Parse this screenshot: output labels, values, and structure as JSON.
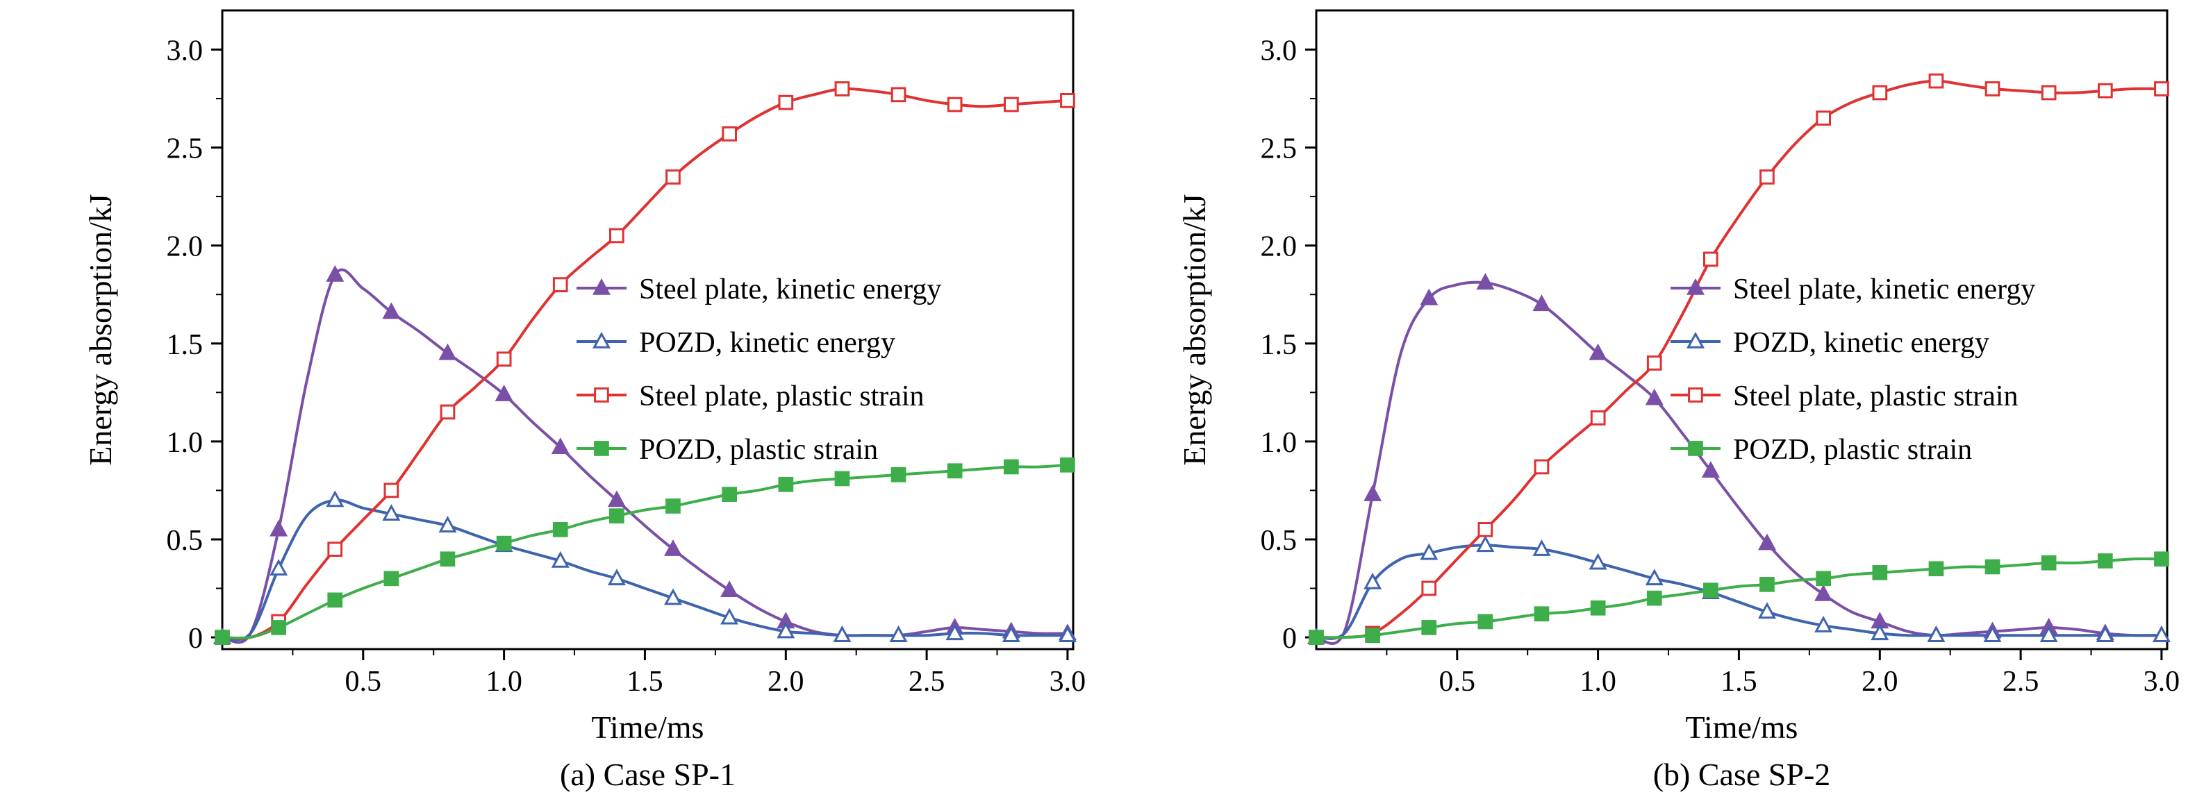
{
  "figure": {
    "background": "#ffffff"
  },
  "chart_data": [
    {
      "type": "line",
      "caption": "(a) Case SP-1",
      "xlabel": "Time/ms",
      "ylabel": "Energy absorption/kJ",
      "xlim": [
        0,
        3.02
      ],
      "ylim": [
        -0.06,
        3.2
      ],
      "grid": false,
      "legend_position": "inside-center-right",
      "xticks": {
        "values": [
          0.5,
          1.0,
          1.5,
          2.0,
          2.5,
          3.0
        ],
        "labels": [
          "0.5",
          "1.0",
          "1.5",
          "2.0",
          "2.5",
          "3.0"
        ]
      },
      "yticks": {
        "values": [
          0,
          0.5,
          1.0,
          1.5,
          2.0,
          2.5,
          3.0
        ],
        "labels": [
          "0",
          "0.5",
          "1.0",
          "1.5",
          "2.0",
          "2.5",
          "3.0"
        ]
      },
      "x": [
        0,
        0.1,
        0.2,
        0.3,
        0.4,
        0.5,
        0.6,
        0.7,
        0.8,
        0.9,
        1.0,
        1.1,
        1.2,
        1.3,
        1.4,
        1.5,
        1.6,
        1.7,
        1.8,
        1.9,
        2.0,
        2.1,
        2.2,
        2.3,
        2.4,
        2.5,
        2.6,
        2.7,
        2.8,
        2.9,
        3.0
      ],
      "series": [
        {
          "name": "Steel plate, kinetic energy",
          "color": "#7a4fa8",
          "marker": "triangle",
          "fill": "filled",
          "values": [
            0,
            0.02,
            0.55,
            1.31,
            1.85,
            1.78,
            1.66,
            1.56,
            1.45,
            1.35,
            1.24,
            1.1,
            0.97,
            0.83,
            0.7,
            0.57,
            0.45,
            0.34,
            0.24,
            0.15,
            0.08,
            0.03,
            0.01,
            0.01,
            0.01,
            0.03,
            0.05,
            0.04,
            0.03,
            0.02,
            0.02
          ]
        },
        {
          "name": "POZD, kinetic energy",
          "color": "#3e64ae",
          "marker": "triangle",
          "fill": "open",
          "values": [
            0,
            0.02,
            0.35,
            0.62,
            0.7,
            0.66,
            0.63,
            0.6,
            0.57,
            0.52,
            0.47,
            0.43,
            0.39,
            0.34,
            0.3,
            0.25,
            0.2,
            0.15,
            0.1,
            0.06,
            0.03,
            0.02,
            0.01,
            0.01,
            0.01,
            0.01,
            0.02,
            0.02,
            0.01,
            0.01,
            0.01
          ]
        },
        {
          "name": "Steel plate, plastic strain",
          "color": "#e03232",
          "marker": "square",
          "fill": "open",
          "values": [
            0,
            0,
            0.08,
            0.27,
            0.45,
            0.6,
            0.75,
            0.95,
            1.15,
            1.28,
            1.42,
            1.62,
            1.8,
            1.93,
            2.05,
            2.2,
            2.35,
            2.47,
            2.57,
            2.66,
            2.73,
            2.77,
            2.8,
            2.79,
            2.77,
            2.74,
            2.72,
            2.71,
            2.72,
            2.73,
            2.74
          ]
        },
        {
          "name": "POZD, plastic strain",
          "color": "#3dae49",
          "marker": "square",
          "fill": "filled",
          "values": [
            0,
            0,
            0.05,
            0.12,
            0.19,
            0.25,
            0.3,
            0.35,
            0.4,
            0.44,
            0.48,
            0.52,
            0.55,
            0.59,
            0.62,
            0.65,
            0.67,
            0.7,
            0.73,
            0.75,
            0.78,
            0.8,
            0.81,
            0.82,
            0.83,
            0.84,
            0.85,
            0.86,
            0.87,
            0.87,
            0.88
          ]
        }
      ]
    },
    {
      "type": "line",
      "caption": "(b) Case SP-2",
      "xlabel": "Time/ms",
      "ylabel": "Energy absorption/kJ",
      "xlim": [
        0,
        3.02
      ],
      "ylim": [
        -0.06,
        3.2
      ],
      "grid": false,
      "legend_position": "inside-center-right",
      "xticks": {
        "values": [
          0.5,
          1.0,
          1.5,
          2.0,
          2.5,
          3.0
        ],
        "labels": [
          "0.5",
          "1.0",
          "1.5",
          "2.0",
          "2.5",
          "3.0"
        ]
      },
      "yticks": {
        "values": [
          0,
          0.5,
          1.0,
          1.5,
          2.0,
          2.5,
          3.0
        ],
        "labels": [
          "0",
          "0.5",
          "1.0",
          "1.5",
          "2.0",
          "2.5",
          "3.0"
        ]
      },
      "x": [
        0,
        0.1,
        0.2,
        0.3,
        0.4,
        0.5,
        0.6,
        0.7,
        0.8,
        0.9,
        1.0,
        1.1,
        1.2,
        1.3,
        1.4,
        1.5,
        1.6,
        1.7,
        1.8,
        1.9,
        2.0,
        2.1,
        2.2,
        2.3,
        2.4,
        2.5,
        2.6,
        2.7,
        2.8,
        2.9,
        3.0
      ],
      "series": [
        {
          "name": "Steel plate, kinetic energy",
          "color": "#7a4fa8",
          "marker": "triangle",
          "fill": "filled",
          "values": [
            0,
            0.03,
            0.73,
            1.45,
            1.73,
            1.8,
            1.81,
            1.77,
            1.7,
            1.58,
            1.45,
            1.34,
            1.22,
            1.04,
            0.85,
            0.66,
            0.48,
            0.33,
            0.22,
            0.13,
            0.08,
            0.03,
            0.01,
            0.02,
            0.03,
            0.04,
            0.05,
            0.04,
            0.02,
            0.01,
            0.01
          ]
        },
        {
          "name": "POZD, kinetic energy",
          "color": "#3e64ae",
          "marker": "triangle",
          "fill": "open",
          "values": [
            0,
            0.02,
            0.28,
            0.4,
            0.43,
            0.46,
            0.47,
            0.46,
            0.45,
            0.42,
            0.38,
            0.34,
            0.3,
            0.27,
            0.23,
            0.18,
            0.13,
            0.09,
            0.06,
            0.04,
            0.02,
            0.01,
            0.01,
            0.01,
            0.01,
            0.01,
            0.01,
            0.01,
            0.01,
            0.01,
            0.01
          ]
        },
        {
          "name": "Steel plate, plastic strain",
          "color": "#e03232",
          "marker": "square",
          "fill": "open",
          "values": [
            0,
            0,
            0.02,
            0.12,
            0.25,
            0.4,
            0.55,
            0.7,
            0.87,
            1.0,
            1.12,
            1.26,
            1.4,
            1.65,
            1.93,
            2.15,
            2.35,
            2.52,
            2.65,
            2.73,
            2.78,
            2.82,
            2.84,
            2.82,
            2.8,
            2.79,
            2.78,
            2.78,
            2.79,
            2.8,
            2.8
          ]
        },
        {
          "name": "POZD, plastic strain",
          "color": "#3dae49",
          "marker": "square",
          "fill": "filled",
          "values": [
            0,
            0,
            0.01,
            0.03,
            0.05,
            0.07,
            0.08,
            0.1,
            0.12,
            0.13,
            0.15,
            0.17,
            0.2,
            0.22,
            0.24,
            0.26,
            0.27,
            0.29,
            0.3,
            0.32,
            0.33,
            0.34,
            0.35,
            0.36,
            0.36,
            0.37,
            0.38,
            0.38,
            0.39,
            0.4,
            0.4
          ]
        }
      ]
    }
  ]
}
